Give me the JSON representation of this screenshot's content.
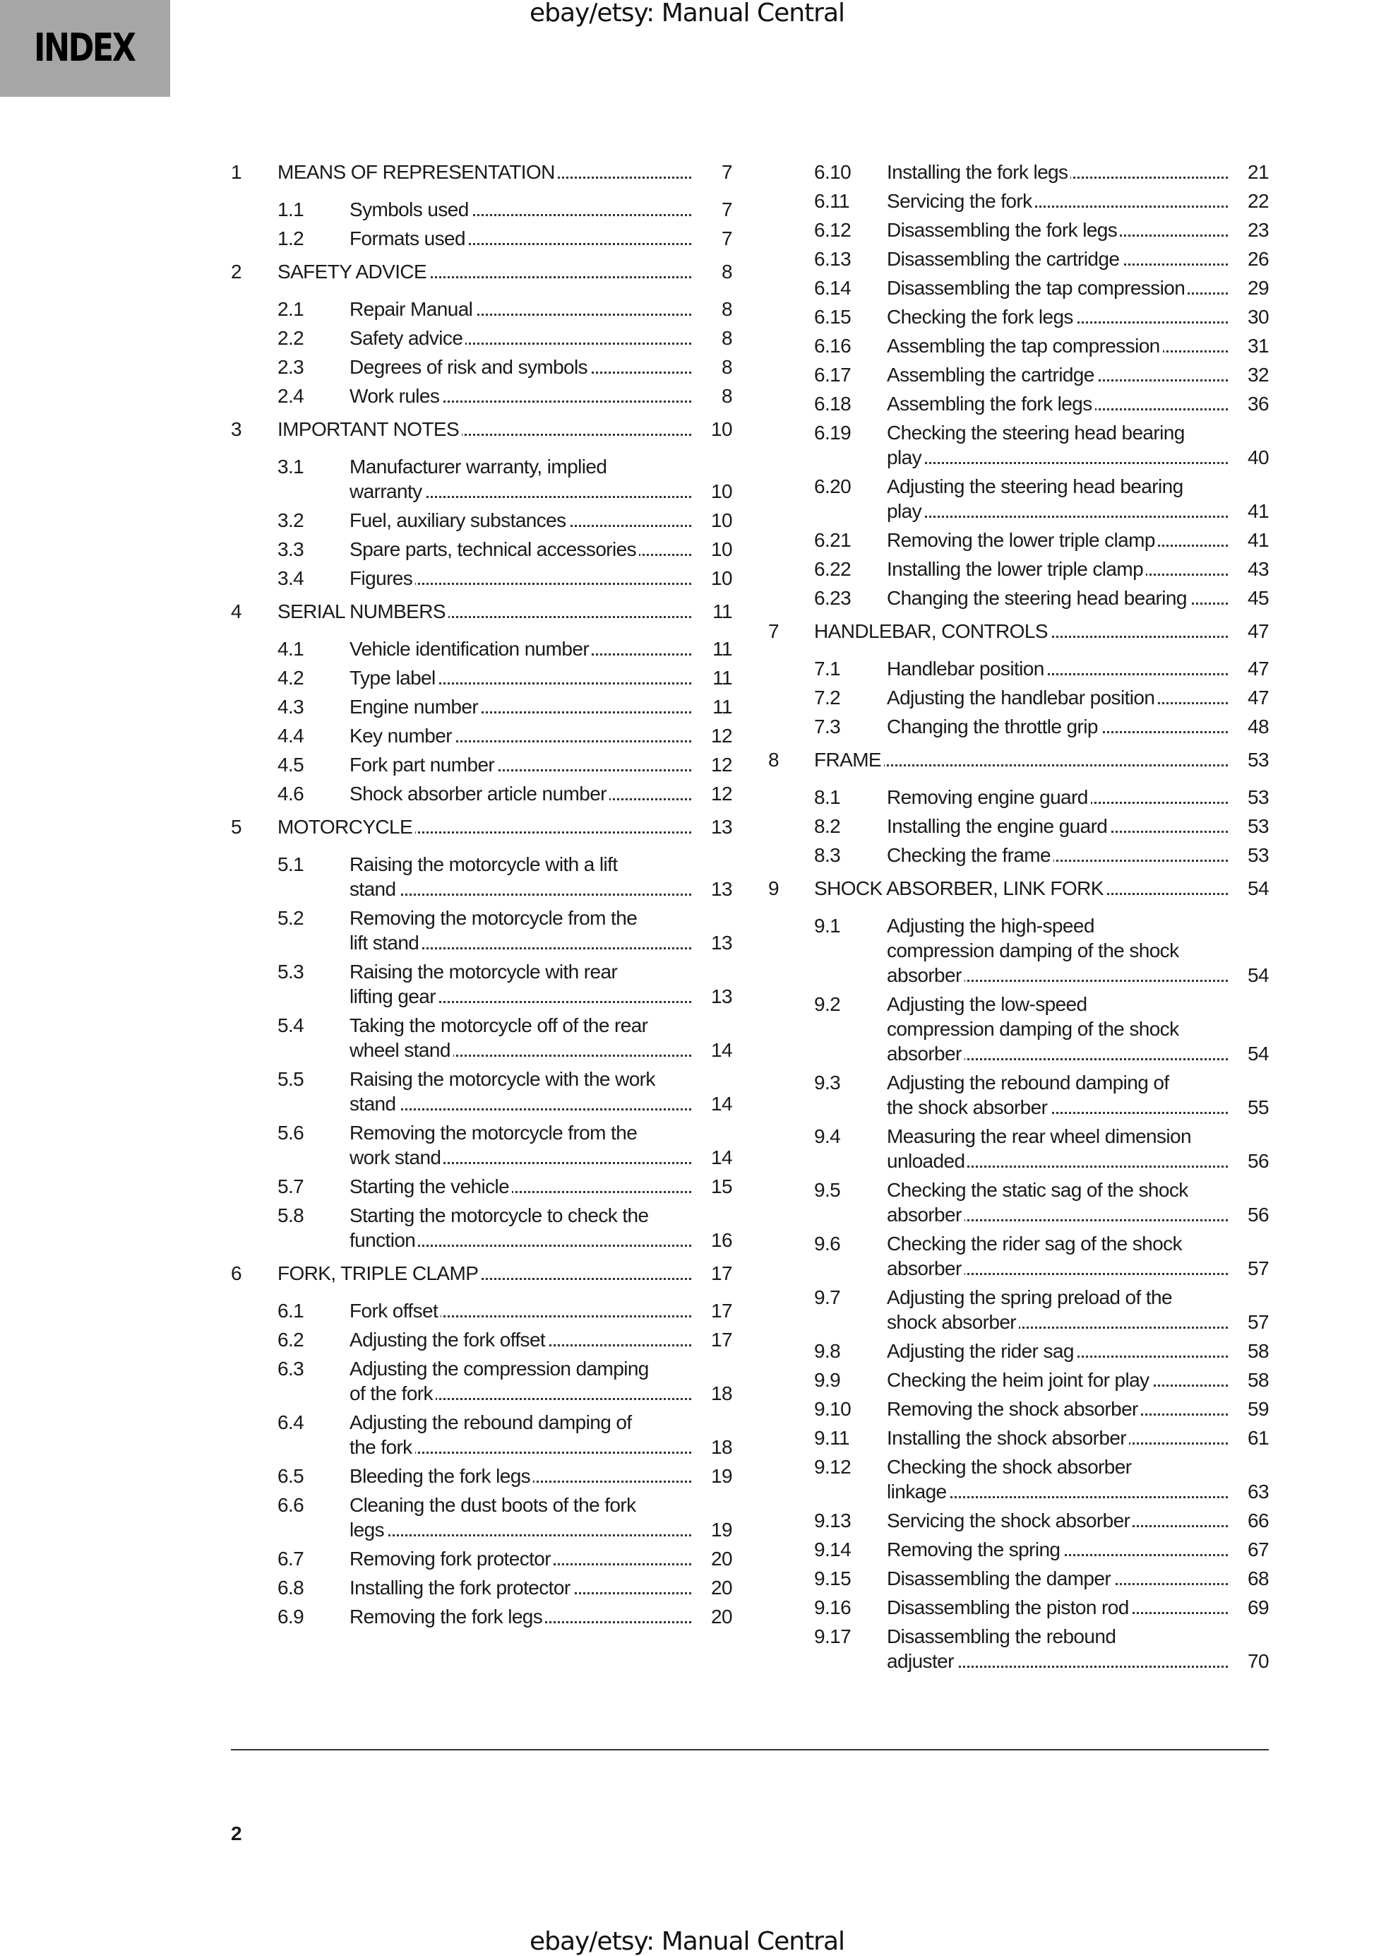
{
  "header": {
    "section_tab": "INDEX",
    "watermark": "ebay/etsy: Manual Central"
  },
  "footer": {
    "watermark": "ebay/etsy: Manual Central",
    "page_number": "2"
  },
  "toc": {
    "left": [
      {
        "level": "chapter",
        "num": "1",
        "title": "MEANS OF REPRESENTATION",
        "page": "7"
      },
      {
        "level": "sub",
        "num": "1.1",
        "title": "Symbols used",
        "page": "7"
      },
      {
        "level": "sub",
        "num": "1.2",
        "title": "Formats used",
        "page": "7"
      },
      {
        "level": "chapter",
        "num": "2",
        "title": "SAFETY ADVICE",
        "page": "8"
      },
      {
        "level": "sub",
        "num": "2.1",
        "title": "Repair Manual",
        "page": "8"
      },
      {
        "level": "sub",
        "num": "2.2",
        "title": "Safety advice",
        "page": "8"
      },
      {
        "level": "sub",
        "num": "2.3",
        "title": "Degrees of risk and symbols",
        "page": "8"
      },
      {
        "level": "sub",
        "num": "2.4",
        "title": "Work rules",
        "page": "8"
      },
      {
        "level": "chapter",
        "num": "3",
        "title": "IMPORTANT NOTES",
        "page": "10"
      },
      {
        "level": "sub",
        "num": "3.1",
        "title": "Manufacturer warranty, implied\nwarranty",
        "page": "10"
      },
      {
        "level": "sub",
        "num": "3.2",
        "title": "Fuel, auxiliary substances",
        "page": "10"
      },
      {
        "level": "sub",
        "num": "3.3",
        "title": "Spare parts, technical accessories",
        "page": "10"
      },
      {
        "level": "sub",
        "num": "3.4",
        "title": "Figures",
        "page": "10"
      },
      {
        "level": "chapter",
        "num": "4",
        "title": "SERIAL NUMBERS",
        "page": "11"
      },
      {
        "level": "sub",
        "num": "4.1",
        "title": "Vehicle identification number",
        "page": "11"
      },
      {
        "level": "sub",
        "num": "4.2",
        "title": "Type label",
        "page": "11"
      },
      {
        "level": "sub",
        "num": "4.3",
        "title": "Engine number",
        "page": "11"
      },
      {
        "level": "sub",
        "num": "4.4",
        "title": "Key number",
        "page": "12"
      },
      {
        "level": "sub",
        "num": "4.5",
        "title": "Fork part number",
        "page": "12"
      },
      {
        "level": "sub",
        "num": "4.6",
        "title": "Shock absorber article number",
        "page": "12"
      },
      {
        "level": "chapter",
        "num": "5",
        "title": "MOTORCYCLE",
        "page": "13"
      },
      {
        "level": "sub",
        "num": "5.1",
        "title": "Raising the motorcycle with a lift\nstand",
        "page": "13"
      },
      {
        "level": "sub",
        "num": "5.2",
        "title": "Removing the motorcycle from the\nlift stand",
        "page": "13"
      },
      {
        "level": "sub",
        "num": "5.3",
        "title": "Raising the motorcycle with rear\nlifting gear",
        "page": "13"
      },
      {
        "level": "sub",
        "num": "5.4",
        "title": "Taking the motorcycle off of the rear\nwheel stand",
        "page": "14"
      },
      {
        "level": "sub",
        "num": "5.5",
        "title": "Raising the motorcycle with the work\nstand",
        "page": "14"
      },
      {
        "level": "sub",
        "num": "5.6",
        "title": "Removing the motorcycle from the\nwork stand",
        "page": "14"
      },
      {
        "level": "sub",
        "num": "5.7",
        "title": "Starting the vehicle",
        "page": "15"
      },
      {
        "level": "sub",
        "num": "5.8",
        "title": "Starting the motorcycle to check the\nfunction",
        "page": "16"
      },
      {
        "level": "chapter",
        "num": "6",
        "title": "FORK, TRIPLE CLAMP",
        "page": "17"
      },
      {
        "level": "sub",
        "num": "6.1",
        "title": "Fork offset",
        "page": "17"
      },
      {
        "level": "sub",
        "num": "6.2",
        "title": "Adjusting the fork offset",
        "page": "17"
      },
      {
        "level": "sub",
        "num": "6.3",
        "title": "Adjusting the compression damping\nof the fork",
        "page": "18"
      },
      {
        "level": "sub",
        "num": "6.4",
        "title": "Adjusting the rebound damping of\nthe fork",
        "page": "18"
      },
      {
        "level": "sub",
        "num": "6.5",
        "title": "Bleeding the fork legs",
        "page": "19"
      },
      {
        "level": "sub",
        "num": "6.6",
        "title": "Cleaning the dust boots of the fork\nlegs",
        "page": "19"
      },
      {
        "level": "sub",
        "num": "6.7",
        "title": "Removing fork protector",
        "page": "20"
      },
      {
        "level": "sub",
        "num": "6.8",
        "title": "Installing the fork protector",
        "page": "20"
      },
      {
        "level": "sub",
        "num": "6.9",
        "title": "Removing the fork legs",
        "page": "20"
      }
    ],
    "right": [
      {
        "level": "sub",
        "num": "6.10",
        "title": "Installing the fork legs",
        "page": "21"
      },
      {
        "level": "sub",
        "num": "6.11",
        "title": "Servicing the fork",
        "page": "22"
      },
      {
        "level": "sub",
        "num": "6.12",
        "title": "Disassembling the fork legs",
        "page": "23"
      },
      {
        "level": "sub",
        "num": "6.13",
        "title": "Disassembling the cartridge",
        "page": "26"
      },
      {
        "level": "sub",
        "num": "6.14",
        "title": "Disassembling the tap compression",
        "page": "29"
      },
      {
        "level": "sub",
        "num": "6.15",
        "title": "Checking the fork legs",
        "page": "30"
      },
      {
        "level": "sub",
        "num": "6.16",
        "title": "Assembling the tap compression",
        "page": "31"
      },
      {
        "level": "sub",
        "num": "6.17",
        "title": "Assembling the cartridge",
        "page": "32"
      },
      {
        "level": "sub",
        "num": "6.18",
        "title": "Assembling the fork legs",
        "page": "36"
      },
      {
        "level": "sub",
        "num": "6.19",
        "title": "Checking the steering head bearing\nplay",
        "page": "40"
      },
      {
        "level": "sub",
        "num": "6.20",
        "title": "Adjusting the steering head bearing\nplay",
        "page": "41"
      },
      {
        "level": "sub",
        "num": "6.21",
        "title": "Removing the lower triple clamp",
        "page": "41"
      },
      {
        "level": "sub",
        "num": "6.22",
        "title": "Installing the lower triple clamp",
        "page": "43"
      },
      {
        "level": "sub",
        "num": "6.23",
        "title": "Changing the steering head bearing",
        "page": "45"
      },
      {
        "level": "chapter",
        "num": "7",
        "title": "HANDLEBAR, CONTROLS",
        "page": "47"
      },
      {
        "level": "sub",
        "num": "7.1",
        "title": "Handlebar position",
        "page": "47"
      },
      {
        "level": "sub",
        "num": "7.2",
        "title": "Adjusting the handlebar position",
        "page": "47"
      },
      {
        "level": "sub",
        "num": "7.3",
        "title": "Changing the throttle grip",
        "page": "48"
      },
      {
        "level": "chapter",
        "num": "8",
        "title": "FRAME",
        "page": "53"
      },
      {
        "level": "sub",
        "num": "8.1",
        "title": "Removing engine guard",
        "page": "53"
      },
      {
        "level": "sub",
        "num": "8.2",
        "title": "Installing the engine guard",
        "page": "53"
      },
      {
        "level": "sub",
        "num": "8.3",
        "title": "Checking the frame",
        "page": "53"
      },
      {
        "level": "chapter",
        "num": "9",
        "title": "SHOCK ABSORBER, LINK FORK",
        "page": "54"
      },
      {
        "level": "sub",
        "num": "9.1",
        "title": "Adjusting the high-speed\ncompression damping of the shock\nabsorber",
        "page": "54"
      },
      {
        "level": "sub",
        "num": "9.2",
        "title": "Adjusting the low-speed\ncompression damping of the shock\nabsorber",
        "page": "54"
      },
      {
        "level": "sub",
        "num": "9.3",
        "title": "Adjusting the rebound damping of\nthe shock absorber",
        "page": "55"
      },
      {
        "level": "sub",
        "num": "9.4",
        "title": "Measuring the rear wheel dimension\nunloaded",
        "page": "56"
      },
      {
        "level": "sub",
        "num": "9.5",
        "title": "Checking the static sag of the shock\nabsorber",
        "page": "56"
      },
      {
        "level": "sub",
        "num": "9.6",
        "title": "Checking the rider sag of the shock\nabsorber",
        "page": "57"
      },
      {
        "level": "sub",
        "num": "9.7",
        "title": "Adjusting the spring preload of the\nshock absorber",
        "page": "57"
      },
      {
        "level": "sub",
        "num": "9.8",
        "title": "Adjusting the rider sag",
        "page": "58"
      },
      {
        "level": "sub",
        "num": "9.9",
        "title": "Checking the heim joint for play",
        "page": "58"
      },
      {
        "level": "sub",
        "num": "9.10",
        "title": "Removing the shock absorber",
        "page": "59"
      },
      {
        "level": "sub",
        "num": "9.11",
        "title": "Installing the shock absorber",
        "page": "61"
      },
      {
        "level": "sub",
        "num": "9.12",
        "title": "Checking the shock absorber\nlinkage",
        "page": "63"
      },
      {
        "level": "sub",
        "num": "9.13",
        "title": "Servicing the shock absorber",
        "page": "66"
      },
      {
        "level": "sub",
        "num": "9.14",
        "title": "Removing the spring",
        "page": "67"
      },
      {
        "level": "sub",
        "num": "9.15",
        "title": "Disassembling the damper",
        "page": "68"
      },
      {
        "level": "sub",
        "num": "9.16",
        "title": "Disassembling the piston rod",
        "page": "69"
      },
      {
        "level": "sub",
        "num": "9.17",
        "title": "Disassembling the rebound\nadjuster",
        "page": "70"
      }
    ]
  }
}
